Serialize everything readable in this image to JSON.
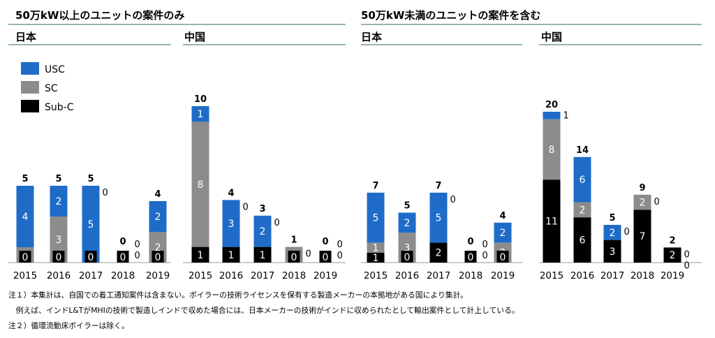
{
  "section_titles": [
    "50万kW以上のユニットの案件のみ",
    "50万kW未満のユニットの案件を含む"
  ],
  "legend": [
    {
      "name": "USC",
      "color": "#1f6cc8"
    },
    {
      "name": "SC",
      "color": "#8c8c8c"
    },
    {
      "name": "Sub-C",
      "color": "#000000"
    }
  ],
  "colors": {
    "USC": "#1f6cc8",
    "SC": "#8c8c8c",
    "Sub-C": "#000000",
    "title_rule": "#2f6b6b",
    "axis": "#999999"
  },
  "chart_data": [
    {
      "type": "bar",
      "stacked": true,
      "title": "日本",
      "categories": [
        "2015",
        "2016",
        "2017",
        "2018",
        "2019"
      ],
      "series": [
        {
          "name": "Sub-C",
          "values": [
            0,
            0,
            0,
            0,
            0
          ]
        },
        {
          "name": "SC",
          "values": [
            1,
            3,
            0,
            0,
            2
          ]
        },
        {
          "name": "USC",
          "values": [
            4,
            2,
            5,
            0,
            2
          ]
        }
      ],
      "totals": [
        5,
        5,
        5,
        0,
        4
      ]
    },
    {
      "type": "bar",
      "stacked": true,
      "title": "中国",
      "categories": [
        "2015",
        "2016",
        "2017",
        "2018",
        "2019"
      ],
      "series": [
        {
          "name": "Sub-C",
          "values": [
            1,
            1,
            1,
            0,
            0
          ]
        },
        {
          "name": "SC",
          "values": [
            8,
            0,
            0,
            1,
            0
          ]
        },
        {
          "name": "USC",
          "values": [
            1,
            3,
            2,
            0,
            0
          ]
        }
      ],
      "totals": [
        10,
        4,
        3,
        1,
        0
      ]
    },
    {
      "type": "bar",
      "stacked": true,
      "title": "日本",
      "categories": [
        "2015",
        "2016",
        "2017",
        "2018",
        "2019"
      ],
      "series": [
        {
          "name": "Sub-C",
          "values": [
            1,
            0,
            2,
            0,
            0
          ]
        },
        {
          "name": "SC",
          "values": [
            1,
            3,
            0,
            0,
            2
          ]
        },
        {
          "name": "USC",
          "values": [
            5,
            2,
            5,
            0,
            2
          ]
        }
      ],
      "totals": [
        7,
        5,
        7,
        0,
        4
      ]
    },
    {
      "type": "bar",
      "stacked": true,
      "title": "中国",
      "categories": [
        "2015",
        "2016",
        "2017",
        "2018",
        "2019"
      ],
      "series": [
        {
          "name": "Sub-C",
          "values": [
            11,
            6,
            3,
            7,
            2
          ]
        },
        {
          "name": "SC",
          "values": [
            8,
            2,
            0,
            2,
            0
          ]
        },
        {
          "name": "USC",
          "values": [
            1,
            6,
            2,
            0,
            0
          ]
        }
      ],
      "totals": [
        20,
        14,
        5,
        9,
        2
      ]
    }
  ],
  "notes": [
    "注１）本集計は、自国での着工通知案件は含まない。ボイラーの技術ライセンスを保有する製造メーカーの本拠地がある国により集計。",
    "　例えば、インドL&TがMHIの技術で製造しインドで収めた場合には、日本メーカーの技術がインドに収められたとして輸出案件として計上している。",
    "注２）循環流動床ボイラーは除く。"
  ]
}
